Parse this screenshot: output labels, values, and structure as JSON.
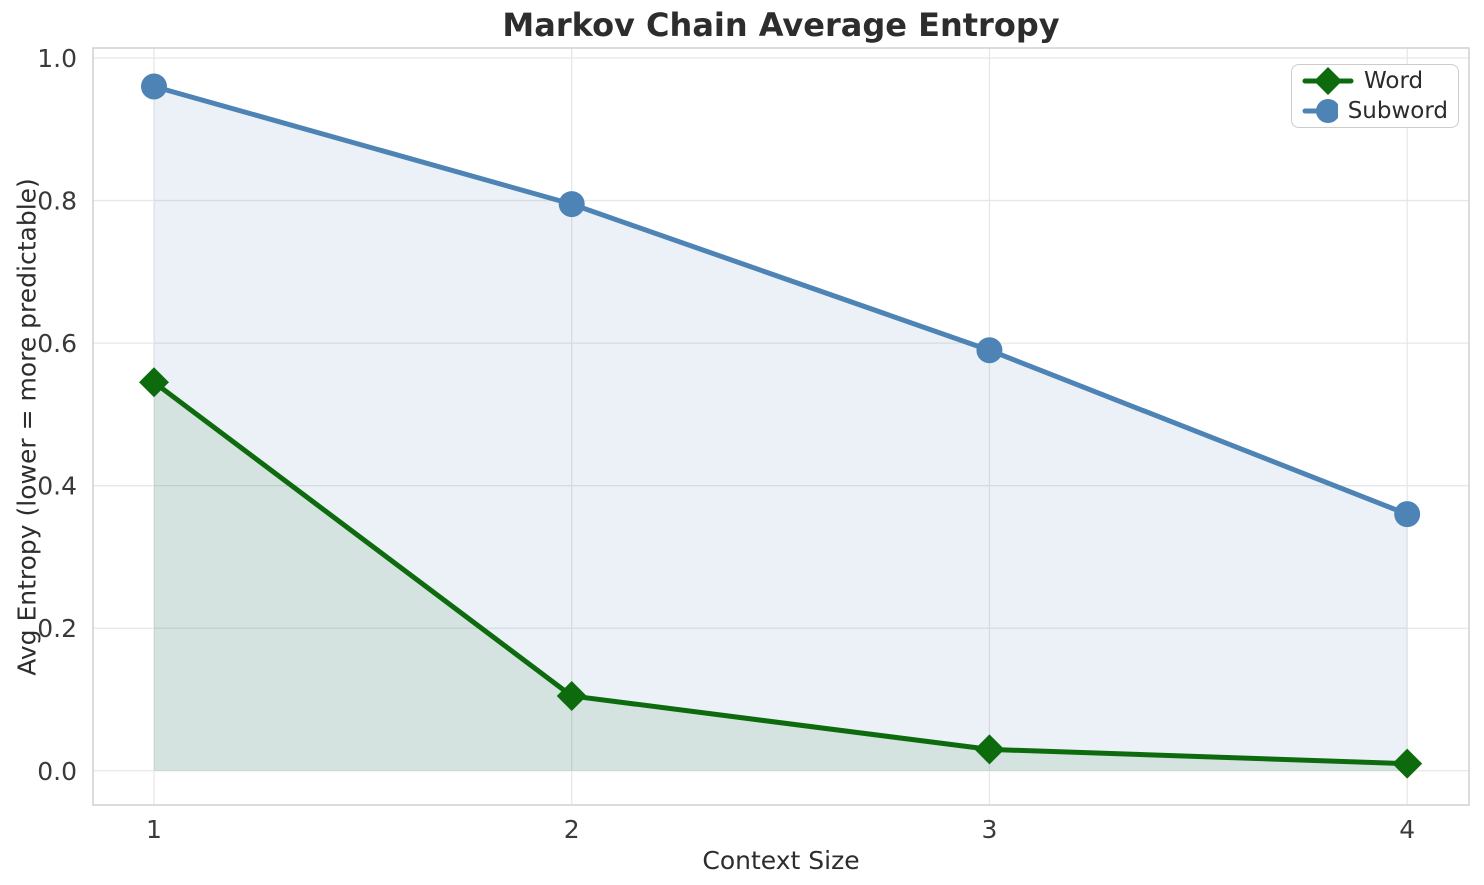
{
  "chart_data": {
    "type": "line",
    "title": "Markov Chain Average Entropy",
    "xlabel": "Context Size",
    "ylabel": "Avg Entropy (lower = more predictable)",
    "x": [
      1,
      2,
      3,
      4
    ],
    "xtick_labels": [
      "1",
      "2",
      "3",
      "4"
    ],
    "yticks": [
      0.0,
      0.2,
      0.4,
      0.6,
      0.8,
      1.0
    ],
    "ytick_labels": [
      "0.0",
      "0.2",
      "0.4",
      "0.6",
      "0.8",
      "1.0"
    ],
    "xlim": [
      0.854,
      4.148
    ],
    "ylim": [
      -0.048,
      1.014
    ],
    "grid": true,
    "area_fill": true,
    "legend_position": "upper right",
    "series": [
      {
        "name": "Word",
        "marker": "diamond",
        "color": "#0d6b0d",
        "fill_rgba": "rgba(10,108,10,0.10)",
        "values": [
          0.545,
          0.105,
          0.03,
          0.01
        ]
      },
      {
        "name": "Subword",
        "marker": "circle",
        "color": "#4d84b5",
        "fill_rgba": "rgba(70,130,180,0.11)",
        "values": [
          0.96,
          0.795,
          0.59,
          0.36
        ]
      }
    ]
  },
  "colors": {
    "background": "#ffffff",
    "grid": "#e7e7e7",
    "spine": "#d0d0d0",
    "title": "#2d2d2d",
    "tick": "#3a3a3a",
    "axis_label": "#2d2d2d",
    "legend_border": "#cccccc"
  }
}
